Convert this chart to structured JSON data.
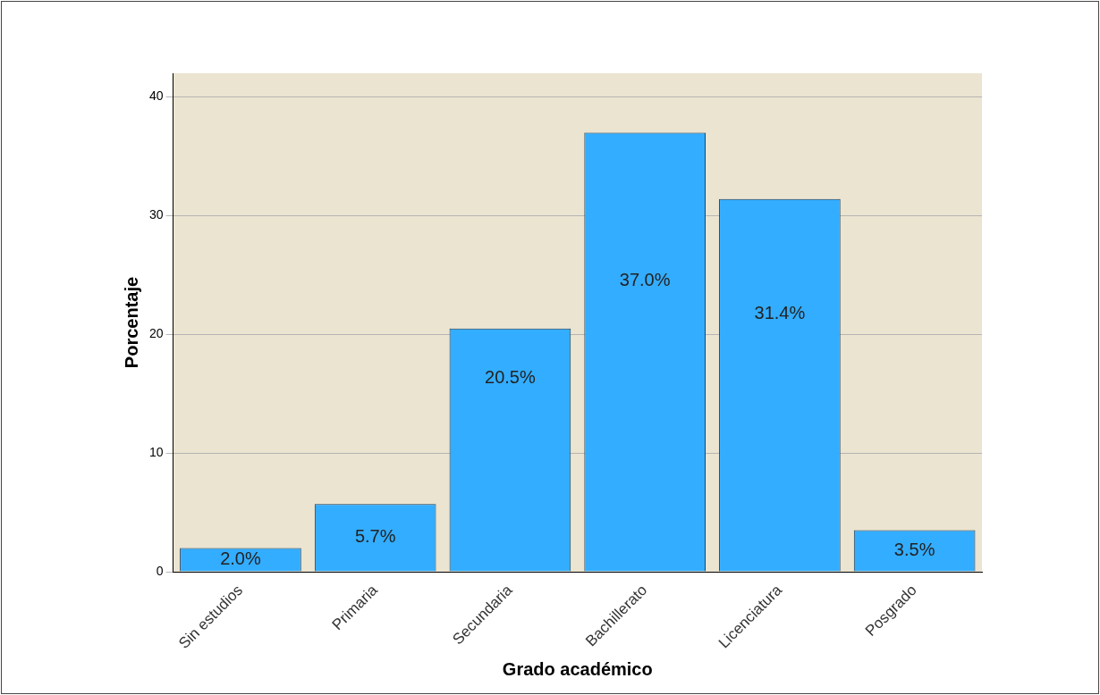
{
  "chart_data": {
    "type": "bar",
    "xlabel": "Grado académico",
    "ylabel": "Porcentaje",
    "categories": [
      "Sin estudios",
      "Primaria",
      "Secundaria",
      "Bachillerato",
      "Licenciatura",
      "Posgrado"
    ],
    "values": [
      2.0,
      5.7,
      20.5,
      37.0,
      31.4,
      3.5
    ],
    "value_labels": [
      "2.0%",
      "5.7%",
      "20.5%",
      "37.0%",
      "31.4%",
      "3.5%"
    ],
    "color": "#33adff",
    "ylim": [
      0,
      42
    ],
    "yticks": [
      0,
      10,
      20,
      30,
      40
    ],
    "grid": "y",
    "legend": false
  }
}
